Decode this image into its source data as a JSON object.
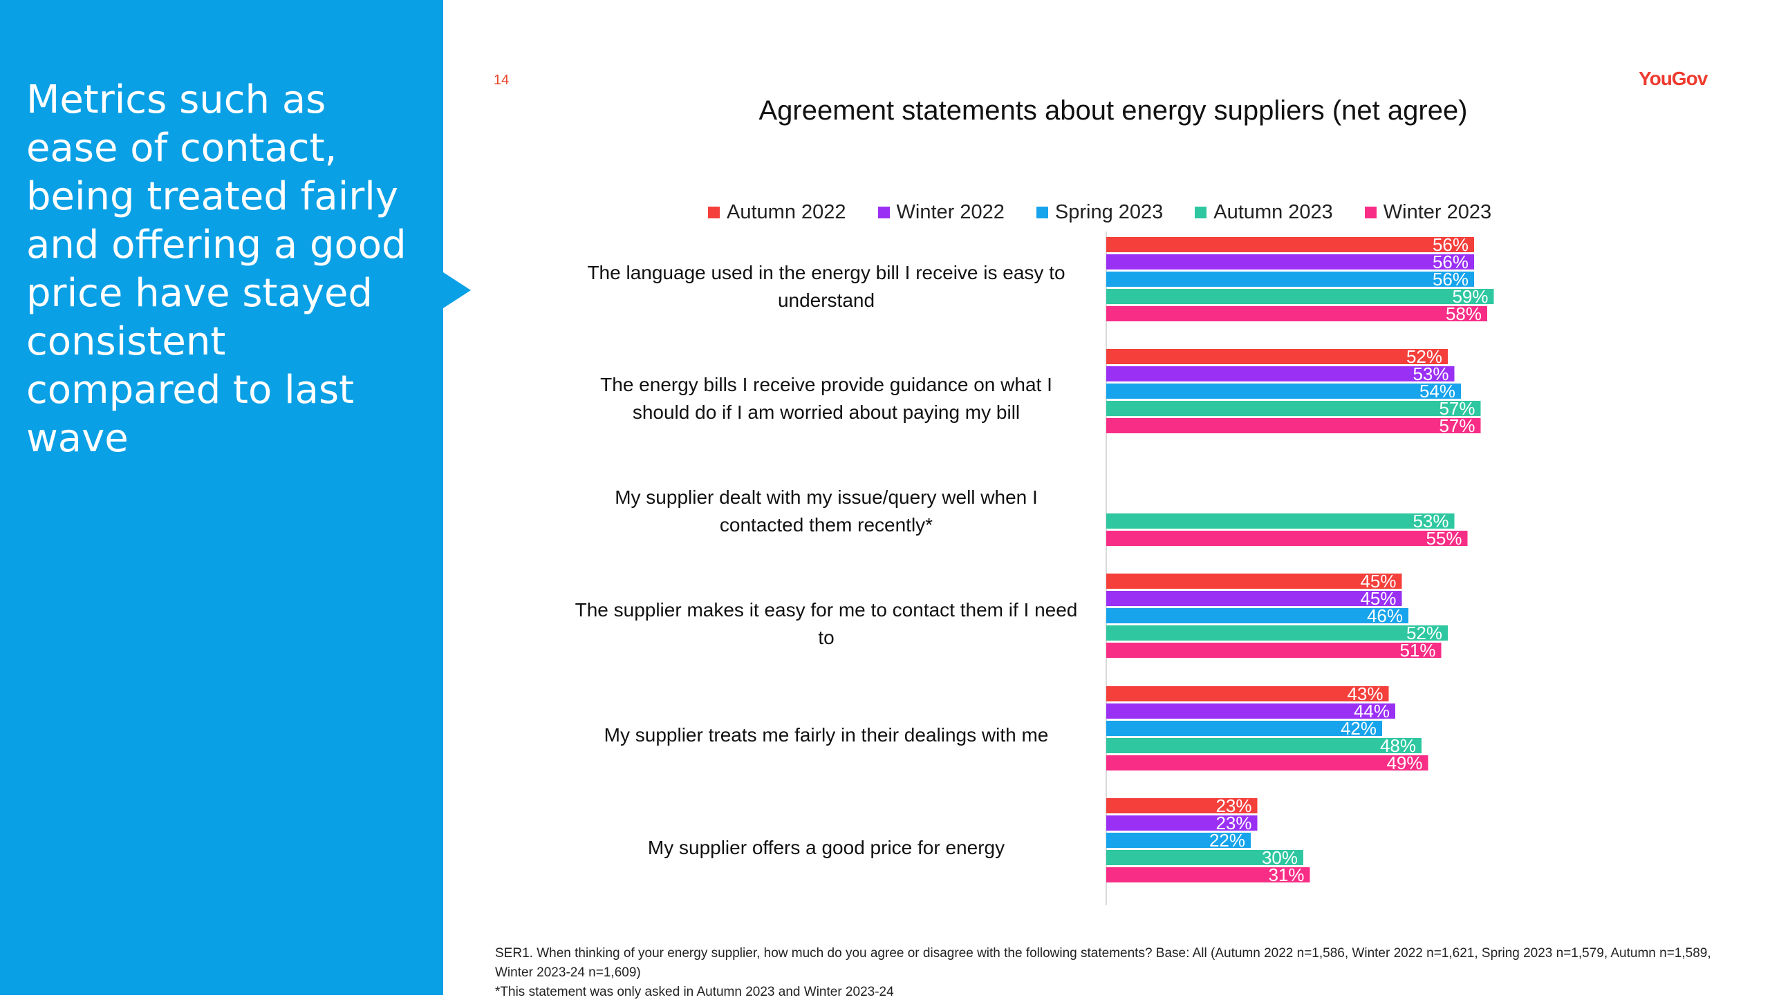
{
  "left_panel": {
    "headline": "Metrics such as ease of contact, being treated fairly and offering a good price have stayed consistent compared to last wave"
  },
  "page_number": "14",
  "brand": "YouGov",
  "colors": {
    "panel": "#0aa0e6",
    "brand": "#ee3b2f",
    "series": [
      "#f43f3a",
      "#9b30f5",
      "#17a4ec",
      "#2ec7a0",
      "#f72d86"
    ]
  },
  "chart_data": {
    "type": "bar",
    "orientation": "horizontal",
    "title": "Agreement statements about energy suppliers (net agree)",
    "legend_position": "top",
    "grid": false,
    "xlim": [
      0,
      100
    ],
    "categories": [
      "The language used in the energy bill I receive is easy to understand",
      "The energy bills I receive provide guidance on what I should do if I am worried about paying my bill",
      "My supplier dealt with my issue/query well when I contacted them recently*",
      "The supplier makes it easy for me to contact them if I need to",
      "My supplier treats me fairly in their dealings with me",
      "My supplier offers a good price for energy"
    ],
    "series": [
      {
        "name": "Autumn 2022",
        "values": [
          56,
          52,
          null,
          45,
          43,
          23
        ]
      },
      {
        "name": "Winter 2022",
        "values": [
          56,
          53,
          null,
          45,
          44,
          23
        ]
      },
      {
        "name": "Spring 2023",
        "values": [
          56,
          54,
          null,
          46,
          42,
          22
        ]
      },
      {
        "name": "Autumn 2023",
        "values": [
          59,
          57,
          53,
          52,
          48,
          30
        ]
      },
      {
        "name": "Winter 2023",
        "values": [
          58,
          57,
          55,
          51,
          49,
          31
        ]
      }
    ],
    "value_suffix": "%"
  },
  "footnote": {
    "line1": "SER1. When thinking of your energy supplier, how much do you agree or disagree with the following statements? Base: All (Autumn 2022 n=1,586, Winter 2022 n=1,621, Spring 2023 n=1,579, Autumn n=1,589, Winter 2023-24 n=1,609)",
    "line2": "*This statement was only asked in Autumn 2023 and Winter 2023-24"
  }
}
